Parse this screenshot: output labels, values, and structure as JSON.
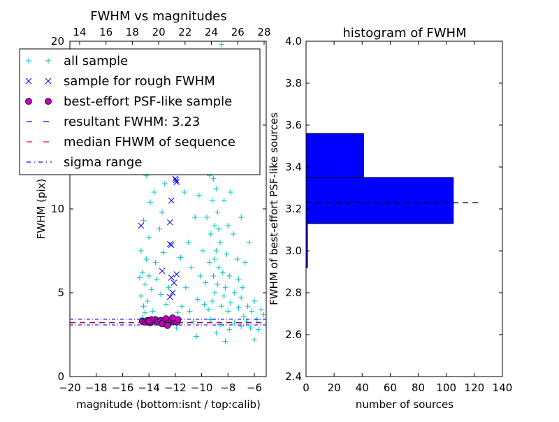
{
  "chart_data": [
    {
      "type": "scatter",
      "title": "FWHM vs magnitudes",
      "xlabel": "magnitude (bottom:isnt / top:calib)",
      "ylabel": "FWHM (pix)",
      "xlim": [
        -20,
        -5.1
      ],
      "ylim": [
        0,
        20
      ],
      "xticks": [
        -20,
        -18,
        -16,
        -14,
        -12,
        -10,
        -8,
        -6
      ],
      "xtick_labels": [
        "−20",
        "−18",
        "−16",
        "−14",
        "−12",
        "−10",
        "−8",
        "−6"
      ],
      "top_xticks": [
        14,
        16,
        18,
        20,
        22,
        24,
        26,
        28
      ],
      "top_xlim": [
        13.26,
        28.16
      ],
      "yticks": [
        0,
        5,
        10,
        15,
        20
      ],
      "ytick_labels": [
        "0",
        "5",
        "10",
        "15",
        "20"
      ],
      "legend_position": "upper-left",
      "legend": [
        "all sample",
        "sample for rough FWHM",
        "best-effort PSF-like sample",
        "resultant FWHM: 3.23",
        "median FHWM of sequence",
        "sigma range"
      ],
      "colors": {
        "all": "#00bfbf",
        "rough": "#0000ff",
        "best": "#bf00bf",
        "result": "#0000ff",
        "median": "#ff0000",
        "sigma": "#0000ff"
      },
      "hlines": {
        "resultant": 3.23,
        "median": 3.21,
        "sigma_low": 3.08,
        "sigma_high": 3.42
      },
      "series": [
        {
          "name": "all sample",
          "points": [
            [
              -14.5,
              3.5
            ],
            [
              -14.4,
              4.2
            ],
            [
              -14.6,
              4.8
            ],
            [
              -14.3,
              5.5
            ],
            [
              -14.5,
              6.2
            ],
            [
              -14.2,
              7.0
            ],
            [
              -14.6,
              7.5
            ],
            [
              -14.0,
              8.3
            ],
            [
              -14.4,
              9.3
            ],
            [
              -13.9,
              10.4
            ],
            [
              -13.6,
              11.0
            ],
            [
              -14.2,
              12.0
            ],
            [
              -13.3,
              12.7
            ],
            [
              -13.8,
              5.2
            ],
            [
              -13.5,
              6.8
            ],
            [
              -13.2,
              8.8
            ],
            [
              -13.0,
              9.8
            ],
            [
              -12.8,
              11.5
            ],
            [
              -14.7,
              5.9
            ],
            [
              -14.1,
              4.5
            ],
            [
              -13.7,
              3.9
            ],
            [
              -12.7,
              4.3
            ],
            [
              -12.5,
              5.3
            ],
            [
              -12.9,
              7.4
            ],
            [
              -13.1,
              4.9
            ],
            [
              -14.3,
              3.8
            ],
            [
              -14.0,
              6.0
            ],
            [
              -13.4,
              5.8
            ],
            [
              -11.5,
              4.2
            ],
            [
              -11.2,
              5.3
            ],
            [
              -10.8,
              6.5
            ],
            [
              -11.0,
              8.0
            ],
            [
              -10.5,
              9.5
            ],
            [
              -11.3,
              11.0
            ],
            [
              -10.7,
              12.5
            ],
            [
              -10.2,
              10.8
            ],
            [
              -11.8,
              3.8
            ],
            [
              -10.9,
              3.9
            ],
            [
              -10.3,
              4.6
            ],
            [
              -11.6,
              7.1
            ],
            [
              -10.1,
              6.0
            ],
            [
              -11.9,
              2.9
            ],
            [
              -10.6,
              3.3
            ],
            [
              -10.0,
              13.6
            ],
            [
              -10.4,
              2.4
            ],
            [
              -9.5,
              4.0
            ],
            [
              -9.2,
              4.5
            ],
            [
              -9.0,
              5.0
            ],
            [
              -8.8,
              5.5
            ],
            [
              -9.1,
              6.0
            ],
            [
              -8.7,
              6.5
            ],
            [
              -9.0,
              7.0
            ],
            [
              -8.9,
              7.5
            ],
            [
              -8.6,
              8.0
            ],
            [
              -9.3,
              8.5
            ],
            [
              -9.0,
              9.0
            ],
            [
              -8.8,
              9.8
            ],
            [
              -9.2,
              10.5
            ],
            [
              -8.9,
              11.2
            ],
            [
              -9.4,
              12.0
            ],
            [
              -9.0,
              13.0
            ],
            [
              -9.6,
              14.0
            ],
            [
              -9.1,
              15.0
            ],
            [
              -9.5,
              16.5
            ],
            [
              -8.8,
              17.8
            ],
            [
              -9.2,
              19.0
            ],
            [
              -8.5,
              19.8
            ],
            [
              -8.5,
              4.2
            ],
            [
              -8.3,
              4.8
            ],
            [
              -8.2,
              5.3
            ],
            [
              -8.0,
              3.9
            ],
            [
              -7.8,
              4.4
            ],
            [
              -7.5,
              5.0
            ],
            [
              -7.2,
              4.1
            ],
            [
              -7.0,
              4.7
            ],
            [
              -6.8,
              3.6
            ],
            [
              -6.5,
              4.2
            ],
            [
              -6.2,
              3.9
            ],
            [
              -6.0,
              4.5
            ],
            [
              -5.8,
              3.4
            ],
            [
              -5.5,
              4.0
            ],
            [
              -5.3,
              3.7
            ],
            [
              -9.7,
              5.6
            ],
            [
              -9.8,
              4.3
            ],
            [
              -8.4,
              6.2
            ],
            [
              -8.1,
              7.3
            ],
            [
              -7.9,
              6.0
            ],
            [
              -7.6,
              8.5
            ],
            [
              -7.3,
              7.0
            ],
            [
              -7.0,
              9.5
            ],
            [
              -6.7,
              6.8
            ],
            [
              -6.4,
              8.0
            ],
            [
              -9.9,
              7.5
            ],
            [
              -9.6,
              9.5
            ],
            [
              -8.3,
              10.5
            ],
            [
              -7.8,
              11.0
            ],
            [
              -7.4,
              12.5
            ],
            [
              -8.6,
              13.8
            ],
            [
              -7.9,
              2.8
            ],
            [
              -7.0,
              3.0
            ],
            [
              -6.3,
              2.9
            ],
            [
              -8.9,
              2.6
            ],
            [
              -8.2,
              2.1
            ],
            [
              -6.0,
              2.2
            ],
            [
              -9.3,
              3.4
            ],
            [
              -8.6,
              3.1
            ],
            [
              -7.5,
              3.2
            ],
            [
              -6.6,
              3.3
            ],
            [
              -5.7,
              2.8
            ],
            [
              -9.4,
              6.8
            ],
            [
              -8.7,
              8.8
            ],
            [
              -9.1,
              11.8
            ],
            [
              -7.2,
              5.8
            ],
            [
              -6.9,
              5.3
            ],
            [
              -8.0,
              9.0
            ]
          ]
        },
        {
          "name": "sample for rough FWHM",
          "points": [
            [
              -14.6,
              9.0
            ],
            [
              -12.4,
              9.2
            ],
            [
              -12.3,
              10.5
            ],
            [
              -13.0,
              6.3
            ],
            [
              -12.4,
              7.9
            ],
            [
              -12.3,
              7.85
            ],
            [
              -11.9,
              6.1
            ],
            [
              -12.3,
              5.9
            ],
            [
              -12.1,
              5.6
            ],
            [
              -12.2,
              5.0
            ],
            [
              -12.4,
              4.75
            ],
            [
              -12.0,
              11.8
            ],
            [
              -11.9,
              11.6
            ],
            [
              -11.95,
              11.7
            ]
          ]
        },
        {
          "name": "best-effort PSF-like sample",
          "points": [
            [
              -14.5,
              3.3
            ],
            [
              -14.3,
              3.25
            ],
            [
              -14.1,
              3.35
            ],
            [
              -13.9,
              3.2
            ],
            [
              -13.7,
              3.3
            ],
            [
              -13.5,
              3.4
            ],
            [
              -13.3,
              3.25
            ],
            [
              -13.1,
              3.35
            ],
            [
              -12.9,
              3.3
            ],
            [
              -12.7,
              3.45
            ],
            [
              -12.5,
              3.2
            ],
            [
              -12.3,
              3.35
            ],
            [
              -12.1,
              3.3
            ],
            [
              -11.9,
              3.25
            ],
            [
              -11.8,
              3.4
            ],
            [
              -13.8,
              3.4
            ],
            [
              -13.0,
              3.15
            ],
            [
              -12.6,
              3.05
            ],
            [
              -12.2,
              3.5
            ],
            [
              -14.0,
              3.3
            ]
          ]
        }
      ]
    },
    {
      "type": "bar",
      "orientation": "horizontal",
      "title": "histogram of FWHM",
      "xlabel": "number of sources",
      "ylabel": "FWHM of best-effort PSF-like sources",
      "xlim": [
        0,
        140
      ],
      "ylim": [
        2.4,
        4.0
      ],
      "xticks": [
        0,
        20,
        40,
        60,
        80,
        100,
        120,
        140
      ],
      "yticks": [
        "2.4",
        "2.6",
        "2.8",
        "3.0",
        "3.2",
        "3.4",
        "3.6",
        "3.8",
        "4.0"
      ],
      "bins": [
        {
          "low": 2.92,
          "high": 3.13,
          "count": 1
        },
        {
          "low": 3.13,
          "high": 3.35,
          "count": 105
        },
        {
          "low": 3.35,
          "high": 3.56,
          "count": 41
        }
      ],
      "bar_color": "#0000ff",
      "resultant_line": {
        "value": 3.23,
        "xmax": 125
      }
    }
  ]
}
